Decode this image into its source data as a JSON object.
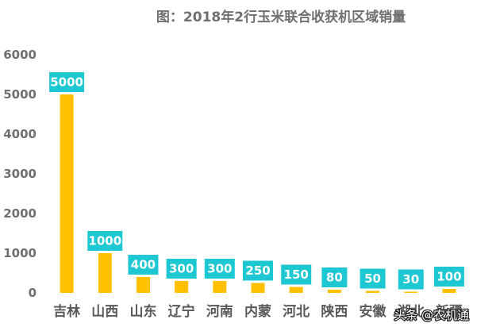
{
  "chart_data": {
    "type": "bar",
    "title": "图：2018年2行玉米联合收获机区域销量",
    "categories": [
      "吉林",
      "山西",
      "山东",
      "辽宁",
      "河南",
      "内蒙",
      "河北",
      "陕西",
      "安徽",
      "湖北",
      "新疆"
    ],
    "values": [
      5000,
      1000,
      400,
      300,
      300,
      250,
      150,
      80,
      50,
      30,
      100
    ],
    "data_labels": [
      "5000",
      "1000",
      "400",
      "300",
      "300",
      "250",
      "150",
      "80",
      "50",
      "30",
      "100"
    ],
    "xlabel": "",
    "ylabel": "",
    "ylim": [
      0,
      6000
    ],
    "y_ticks": [
      0,
      1000,
      2000,
      3000,
      4000,
      5000,
      6000
    ],
    "grid": false,
    "legend": "none",
    "colors": {
      "bar": "#ffc000",
      "data_label_bg": "#1ec8d2",
      "data_label_text": "#ffffff",
      "axis_text": "#6f6f6f",
      "category_text": "#595959"
    }
  },
  "watermark": "头条 @农机通"
}
